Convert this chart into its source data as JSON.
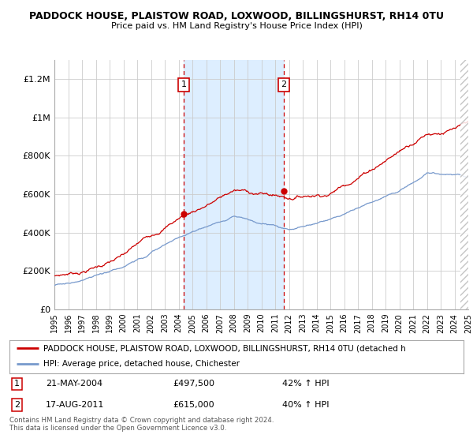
{
  "title": "PADDOCK HOUSE, PLAISTOW ROAD, LOXWOOD, BILLINGSHURST, RH14 0TU",
  "subtitle": "Price paid vs. HM Land Registry's House Price Index (HPI)",
  "legend_line1": "PADDOCK HOUSE, PLAISTOW ROAD, LOXWOOD, BILLINGSHURST, RH14 0TU (detached h",
  "legend_line2": "HPI: Average price, detached house, Chichester",
  "ylim": [
    0,
    1300000
  ],
  "yticks": [
    0,
    200000,
    400000,
    600000,
    800000,
    1000000,
    1200000
  ],
  "ytick_labels": [
    "£0",
    "£200K",
    "£400K",
    "£600K",
    "£800K",
    "£1M",
    "£1.2M"
  ],
  "xstart": 1995,
  "xend": 2025,
  "transaction1_date": 2004.39,
  "transaction1_price": 497500,
  "transaction1_display": "21-MAY-2004",
  "transaction1_amount": "£497,500",
  "transaction1_hpi": "42% ↑ HPI",
  "transaction2_date": 2011.63,
  "transaction2_price": 615000,
  "transaction2_display": "17-AUG-2011",
  "transaction2_amount": "£615,000",
  "transaction2_hpi": "40% ↑ HPI",
  "hpi_color": "#7799cc",
  "price_color": "#cc0000",
  "shade_color": "#ddeeff",
  "footer": "Contains HM Land Registry data © Crown copyright and database right 2024.\nThis data is licensed under the Open Government Licence v3.0.",
  "background_color": "#ffffff",
  "grid_color": "#cccccc"
}
